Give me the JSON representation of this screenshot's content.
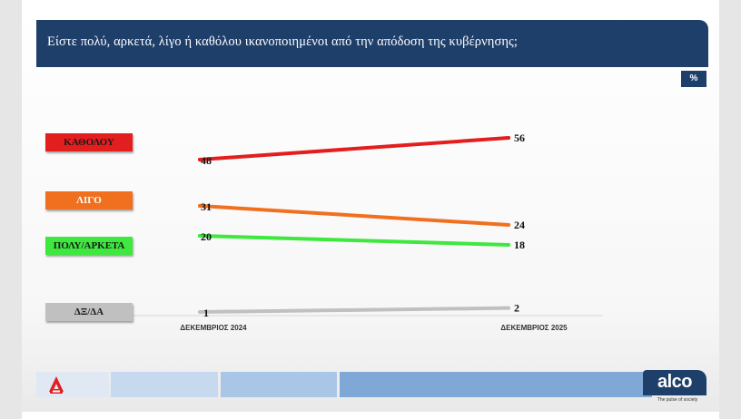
{
  "title": "Είστε πολύ, αρκετά, λίγο ή καθόλου ικανοποιημένοι από την απόδοση της κυβέρνησης;",
  "unit_badge": "%",
  "footer": {
    "brand": "alco",
    "tagline": "The pulse of society"
  },
  "colors": {
    "title_bar": "#1f3f6b",
    "footer_blocks": [
      "#dfe8f3",
      "#c7d9ee",
      "#a9c6e6",
      "#7fa8d6"
    ]
  },
  "chart_data": {
    "type": "line",
    "title": "Είστε πολύ, αρκετά, λίγο ή καθόλου ικανοποιημένοι από την απόδοση της κυβέρνησης;",
    "x": [
      "ΔΕΚΕΜΒΡΙΟΣ 2024",
      "ΔΕΚΕΜΒΡΙΟΣ 2025"
    ],
    "unit": "%",
    "ylim": [
      0,
      60
    ],
    "grid": false,
    "legend_position": "left",
    "series": [
      {
        "name": "ΚΑΘΟΛΟΥ",
        "values": [
          48,
          56
        ],
        "color": "#e31e1e",
        "text_color": "#1a1a1a"
      },
      {
        "name": "ΛΙΓΟ",
        "values": [
          31,
          24
        ],
        "color": "#f07020",
        "text_color": "#ffffff"
      },
      {
        "name": "ΠΟΛΥ/ΑΡΚΕΤΑ",
        "values": [
          20,
          18
        ],
        "color": "#3ee83e",
        "text_color": "#1a1a1a"
      },
      {
        "name": "ΔΞ/ΔΑ",
        "values": [
          1,
          2
        ],
        "color": "#c0c0c0",
        "text_color": "#1a1a1a"
      }
    ]
  }
}
